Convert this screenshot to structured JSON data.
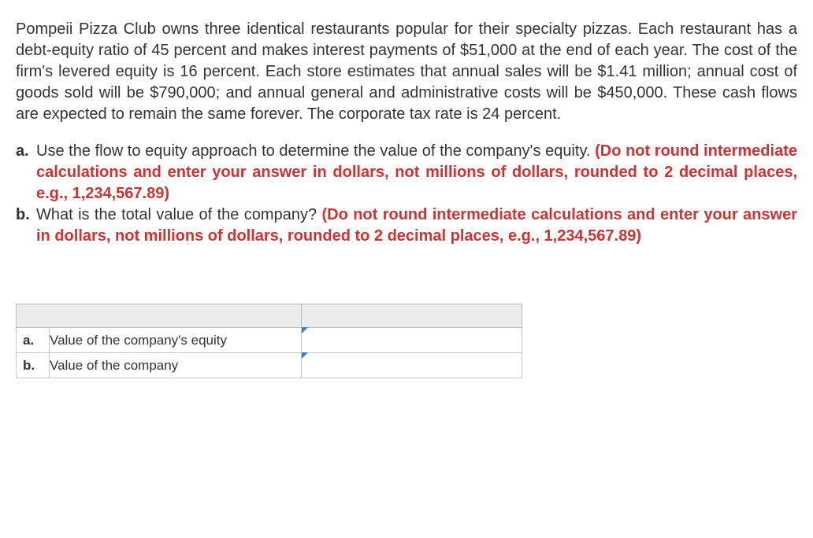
{
  "intro": "Pompeii Pizza Club owns three identical restaurants popular for their specialty pizzas. Each restaurant has a debt-equity ratio of 45 percent and makes interest payments of $51,000 at the end of each year. The cost of the firm's levered equity is 16 percent. Each store estimates that annual sales will be $1.41 million; annual cost of goods sold will be $790,000; and annual general and administrative costs will be $450,000. These cash flows are expected to remain the same forever. The corporate tax rate is 24 percent.",
  "questions": {
    "a": {
      "label": "a.",
      "text": "Use the flow to equity approach to determine the value of the company's equity. ",
      "hint": "(Do not round intermediate calculations and enter your answer in dollars, not millions of dollars, rounded to 2 decimal places, e.g., 1,234,567.89)"
    },
    "b": {
      "label": "b.",
      "text": "What is the total value of the company? ",
      "hint": "(Do not round intermediate calculations and enter your answer in dollars, not millions of dollars, rounded to 2 decimal places, e.g., 1,234,567.89)"
    }
  },
  "table": {
    "rows": [
      {
        "label": "a.",
        "desc": "Value of the company's equity",
        "value": ""
      },
      {
        "label": "b.",
        "desc": "Value of the company",
        "value": ""
      }
    ]
  },
  "colors": {
    "text": "#333333",
    "hint": "#cc3333",
    "table_header_bg": "#ececec",
    "table_border": "#c4c4c4",
    "input_marker": "#3b7fbf",
    "background": "#ffffff"
  }
}
